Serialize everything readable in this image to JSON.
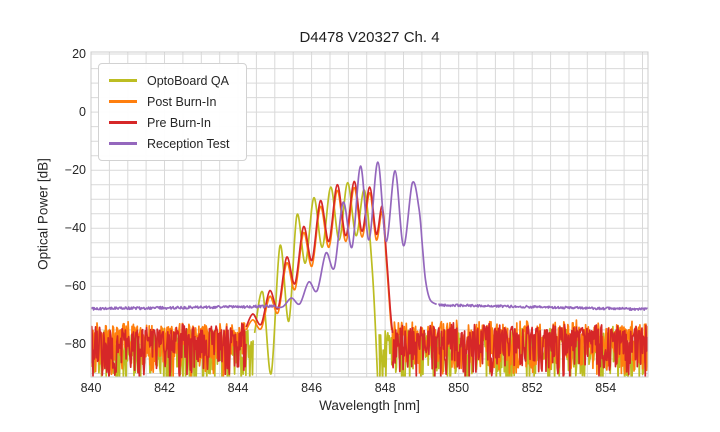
{
  "chart_data": {
    "type": "line",
    "title": "D4478 V20327 Ch. 4",
    "xlabel": "Wavelength [nm]",
    "ylabel": "Optical Power [dB]",
    "xlim": [
      840,
      855.15
    ],
    "ylim": [
      -91.2,
      20.7
    ],
    "xticks": [
      {
        "v": 840,
        "label": "840"
      },
      {
        "v": 842,
        "label": "842"
      },
      {
        "v": 844,
        "label": "844"
      },
      {
        "v": 846,
        "label": "846"
      },
      {
        "v": 848,
        "label": "848"
      },
      {
        "v": 850,
        "label": "850"
      },
      {
        "v": 852,
        "label": "852"
      },
      {
        "v": 854,
        "label": "854"
      }
    ],
    "yticks": [
      {
        "v": 20,
        "label": "20"
      },
      {
        "v": 0,
        "label": "0"
      },
      {
        "v": -20,
        "label": "−20"
      },
      {
        "v": -40,
        "label": "−40"
      },
      {
        "v": -60,
        "label": "−60"
      },
      {
        "v": -80,
        "label": "−80"
      }
    ],
    "grid": {
      "x_step": 0.5,
      "y_step": 5,
      "color": "#d9d9d9",
      "spine_color": "#cccccc"
    },
    "legend_position": "upper left",
    "series": [
      {
        "name": "OptoBoard QA",
        "color": "#bcbd22",
        "segments": [
          {
            "type": "noise",
            "x0": 840.0,
            "x1": 844.42,
            "v0": -76.0,
            "v1": -75.0,
            "jitter": 3.5,
            "spike": 18,
            "seed": 11
          },
          {
            "type": "profile",
            "points": [
              [
                844.45,
                -76
              ],
              [
                844.67,
                -62
              ],
              [
                844.9,
                -90
              ],
              [
                845.14,
                -46
              ],
              [
                845.38,
                -72
              ],
              [
                845.6,
                -35.5
              ],
              [
                845.83,
                -52
              ],
              [
                846.06,
                -29.5
              ],
              [
                846.29,
                -46.5
              ],
              [
                846.52,
                -25.8
              ],
              [
                846.75,
                -44
              ],
              [
                846.98,
                -24.3
              ],
              [
                847.21,
                -42.5
              ],
              [
                847.44,
                -27
              ],
              [
                847.66,
                -56
              ],
              [
                847.8,
                -93
              ]
            ]
          },
          {
            "type": "noise",
            "x0": 847.84,
            "x1": 855.15,
            "v0": -75.5,
            "v1": -75.5,
            "jitter": 3.5,
            "spike": 18,
            "seed": 12
          }
        ]
      },
      {
        "name": "Post Burn-In",
        "color": "#ff7f0e",
        "segments": [
          {
            "type": "noise",
            "x0": 840.0,
            "x1": 844.22,
            "v0": -73.5,
            "v1": -73.0,
            "jitter": 3.0,
            "spike": 17,
            "seed": 21
          },
          {
            "type": "profile",
            "points": [
              [
                844.22,
                -75
              ],
              [
                844.4,
                -71.5
              ],
              [
                844.63,
                -74.5
              ],
              [
                844.86,
                -63.5
              ],
              [
                845.09,
                -69
              ],
              [
                845.32,
                -52
              ],
              [
                845.55,
                -61
              ],
              [
                845.78,
                -41.5
              ],
              [
                846.01,
                -53
              ],
              [
                846.24,
                -32.5
              ],
              [
                846.47,
                -46.5
              ],
              [
                846.7,
                -27.0
              ],
              [
                846.93,
                -44.5
              ],
              [
                847.16,
                -26.0
              ],
              [
                847.37,
                -43
              ],
              [
                847.58,
                -27.8
              ],
              [
                847.76,
                -44
              ],
              [
                847.92,
                -34.5
              ],
              [
                848.04,
                -52
              ],
              [
                848.14,
                -70
              ],
              [
                848.18,
                -75
              ]
            ]
          },
          {
            "type": "noise",
            "x0": 848.18,
            "x1": 855.15,
            "v0": -73.0,
            "v1": -73.0,
            "jitter": 3.0,
            "spike": 17,
            "seed": 22
          }
        ]
      },
      {
        "name": "Pre Burn-In",
        "color": "#d62728",
        "segments": [
          {
            "type": "noise",
            "x0": 840.0,
            "x1": 844.22,
            "v0": -74.5,
            "v1": -74.0,
            "jitter": 3.0,
            "spike": 17,
            "seed": 31
          },
          {
            "type": "profile",
            "points": [
              [
                844.22,
                -74
              ],
              [
                844.4,
                -69.5
              ],
              [
                844.63,
                -73
              ],
              [
                844.86,
                -61.5
              ],
              [
                845.09,
                -67.5
              ],
              [
                845.32,
                -50
              ],
              [
                845.55,
                -59
              ],
              [
                845.78,
                -39.5
              ],
              [
                846.01,
                -51
              ],
              [
                846.24,
                -30.5
              ],
              [
                846.47,
                -44.5
              ],
              [
                846.7,
                -25.0
              ],
              [
                846.93,
                -42.5
              ],
              [
                847.16,
                -23.9
              ],
              [
                847.37,
                -41
              ],
              [
                847.58,
                -25.8
              ],
              [
                847.76,
                -42
              ],
              [
                847.92,
                -32.5
              ],
              [
                848.04,
                -50
              ],
              [
                848.14,
                -68
              ],
              [
                848.2,
                -76
              ]
            ]
          },
          {
            "type": "noise",
            "x0": 848.2,
            "x1": 855.15,
            "v0": -74.0,
            "v1": -74.0,
            "jitter": 3.0,
            "spike": 17,
            "seed": 32
          }
        ]
      },
      {
        "name": "Reception Test",
        "color": "#9467bd",
        "segments": [
          {
            "type": "noise",
            "x0": 840.0,
            "x1": 845.02,
            "v0": -67.7,
            "v1": -66.9,
            "jitter": 0.9,
            "spike": 0,
            "seed": 41
          },
          {
            "type": "profile",
            "points": [
              [
                845.02,
                -67.2
              ],
              [
                845.22,
                -67
              ],
              [
                845.45,
                -64
              ],
              [
                845.68,
                -66
              ],
              [
                845.92,
                -58.5
              ],
              [
                846.15,
                -61.5
              ],
              [
                846.39,
                -48.5
              ],
              [
                846.62,
                -53.5
              ],
              [
                846.86,
                -31
              ],
              [
                847.1,
                -46.5
              ],
              [
                847.33,
                -18.6
              ],
              [
                847.56,
                -44
              ],
              [
                847.8,
                -17.2
              ],
              [
                848.03,
                -44.5
              ],
              [
                848.27,
                -20.2
              ],
              [
                848.5,
                -46
              ],
              [
                848.74,
                -24.4
              ],
              [
                848.92,
                -33
              ],
              [
                849.02,
                -47
              ],
              [
                849.1,
                -58
              ],
              [
                849.22,
                -64.5
              ],
              [
                849.4,
                -66.2
              ]
            ]
          },
          {
            "type": "noise",
            "x0": 849.45,
            "x1": 855.15,
            "v0": -66.4,
            "v1": -67.9,
            "jitter": 0.8,
            "spike": 0,
            "seed": 42
          }
        ]
      }
    ]
  }
}
